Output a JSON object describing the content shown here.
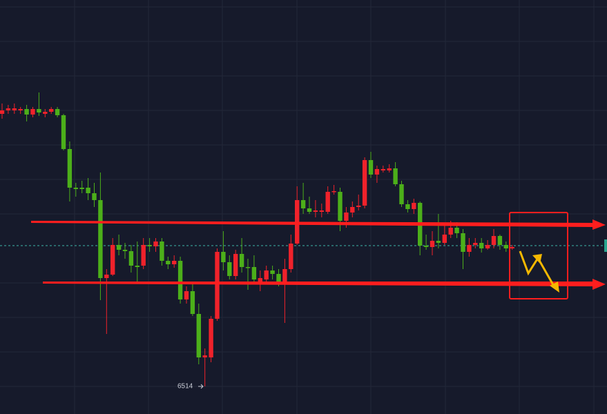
{
  "chart_data": {
    "type": "candlestick",
    "open": [
      6909,
      6914,
      6914,
      6914,
      6916,
      6908,
      6916,
      6909,
      6912,
      6916,
      6907,
      6858,
      6802,
      6802,
      6802,
      6794,
      6784,
      6671,
      6676,
      6719,
      6712,
      6710,
      6689,
      6689,
      6719,
      6717,
      6724,
      6696,
      6691,
      6696,
      6640,
      6652,
      6619,
      6556,
      6556,
      6612,
      6709,
      6694,
      6674,
      6706,
      6687,
      6687,
      6666,
      6669,
      6682,
      6677,
      6664,
      6684,
      6721,
      6784,
      6772,
      6767,
      6767,
      6767,
      6796,
      6796,
      6754,
      6766,
      6774,
      6776,
      6842,
      6821,
      6827,
      6827,
      6830,
      6807,
      6778,
      6771,
      6780,
      6718,
      6716,
      6725,
      6722,
      6734,
      6744,
      6736,
      6709,
      6719,
      6722,
      6714,
      6719,
      6732,
      6719,
      6714
    ],
    "high": [
      6924,
      6922,
      6924,
      6919,
      6922,
      6919,
      6940,
      6916,
      6919,
      6919,
      6909,
      6869,
      6809,
      6812,
      6816,
      6809,
      6824,
      6684,
      6729,
      6734,
      6722,
      6719,
      6724,
      6729,
      6729,
      6729,
      6729,
      6702,
      6704,
      6702,
      6659,
      6664,
      6634,
      6569,
      6616,
      6714,
      6739,
      6704,
      6712,
      6729,
      6699,
      6704,
      6682,
      6689,
      6689,
      6684,
      6699,
      6734,
      6804,
      6809,
      6789,
      6784,
      6779,
      6804,
      6806,
      6802,
      6774,
      6782,
      6792,
      6846,
      6854,
      6834,
      6834,
      6836,
      6839,
      6812,
      6784,
      6786,
      6782,
      6734,
      6739,
      6764,
      6749,
      6754,
      6752,
      6742,
      6729,
      6729,
      6729,
      6726,
      6742,
      6734,
      6724,
      6719
    ],
    "low": [
      6902,
      6909,
      6909,
      6909,
      6898,
      6904,
      6906,
      6904,
      6909,
      6904,
      6856,
      6782,
      6789,
      6794,
      6784,
      6774,
      6639,
      6590,
      6674,
      6704,
      6699,
      6679,
      6666,
      6684,
      6709,
      6709,
      6689,
      6684,
      6686,
      6634,
      6634,
      6616,
      6546,
      6514,
      6549,
      6609,
      6682,
      6669,
      6669,
      6679,
      6654,
      6662,
      6652,
      6664,
      6669,
      6659,
      6606,
      6679,
      6719,
      6764,
      6764,
      6759,
      6759,
      6764,
      6792,
      6739,
      6744,
      6759,
      6769,
      6772,
      6816,
      6809,
      6824,
      6824,
      6804,
      6774,
      6766,
      6764,
      6704,
      6712,
      6704,
      6714,
      6719,
      6729,
      6729,
      6684,
      6702,
      6714,
      6708,
      6712,
      6714,
      6712,
      6709,
      6712
    ],
    "close": [
      6914,
      6917,
      6917,
      6916,
      6908,
      6916,
      6911,
      6912,
      6916,
      6907,
      6858,
      6802,
      6800,
      6800,
      6794,
      6784,
      6671,
      6676,
      6719,
      6712,
      6710,
      6689,
      6687,
      6719,
      6717,
      6724,
      6696,
      6691,
      6696,
      6640,
      6652,
      6619,
      6556,
      6559,
      6612,
      6709,
      6694,
      6674,
      6706,
      6687,
      6686,
      6669,
      6671,
      6682,
      6677,
      6664,
      6684,
      6721,
      6784,
      6772,
      6767,
      6769,
      6769,
      6796,
      6797,
      6754,
      6766,
      6774,
      6776,
      6842,
      6821,
      6829,
      6829,
      6830,
      6807,
      6778,
      6771,
      6780,
      6718,
      6716,
      6725,
      6722,
      6734,
      6744,
      6736,
      6709,
      6719,
      6722,
      6714,
      6719,
      6732,
      6719,
      6714,
      6716
    ],
    "up_color": "#f0222b",
    "down_color": "#4caf1a",
    "ylim": [
      6474,
      7074
    ],
    "low_label": "6514"
  }
}
